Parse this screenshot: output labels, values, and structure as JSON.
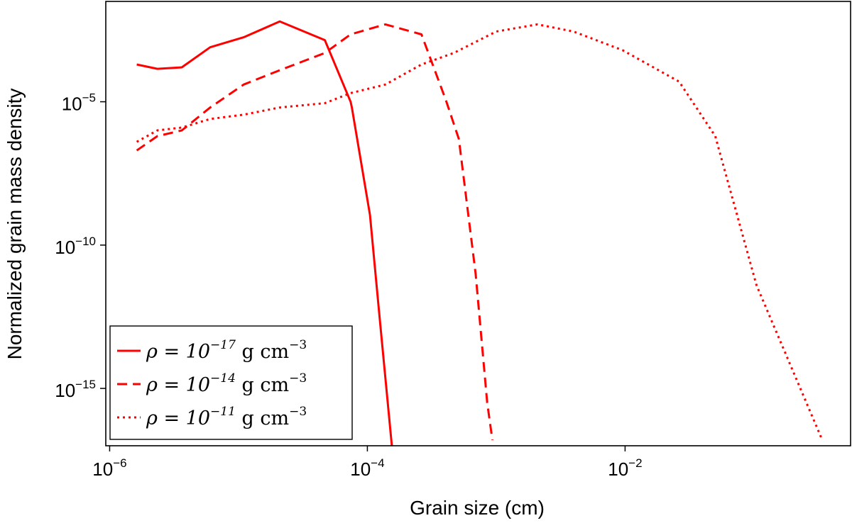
{
  "chart_data": {
    "type": "line",
    "xscale": "log",
    "yscale": "log",
    "xlabel": "Grain size (cm)",
    "ylabel": "Normalized grain mass density",
    "xlim_log10": [
      -6.03,
      -0.25
    ],
    "ylim_log10": [
      -17.0,
      -1.5
    ],
    "x_ticks": [
      {
        "base": "10",
        "exp": "−6",
        "log10": -6
      },
      {
        "base": "10",
        "exp": "−4",
        "log10": -4
      },
      {
        "base": "10",
        "exp": "−2",
        "log10": -2
      }
    ],
    "y_ticks": [
      {
        "base": "10",
        "exp": "−5",
        "log10": -5
      },
      {
        "base": "10",
        "exp": "−10",
        "log10": -10
      },
      {
        "base": "10",
        "exp": "−15",
        "log10": -15
      }
    ],
    "legend_position": "lower-left",
    "series": [
      {
        "name": "rho=1e-17",
        "label_prefix": "ρ = 10",
        "label_exp": "−17",
        "label_unit": " g cm",
        "label_unit_exp": "−3",
        "color": "#ff0000",
        "dash": "solid",
        "points": [
          [
            -5.79,
            -3.7
          ],
          [
            -5.63,
            -3.85
          ],
          [
            -5.44,
            -3.8
          ],
          [
            -5.22,
            -3.1
          ],
          [
            -4.96,
            -2.75
          ],
          [
            -4.68,
            -2.2
          ],
          [
            -4.33,
            -2.85
          ],
          [
            -4.13,
            -5.0
          ],
          [
            -4.12,
            -5.2
          ],
          [
            -3.98,
            -8.95
          ],
          [
            -3.91,
            -12.3
          ],
          [
            -3.81,
            -17.0
          ]
        ]
      },
      {
        "name": "rho=1e-14",
        "label_prefix": "ρ = 10",
        "label_exp": "−14",
        "label_unit": " g cm",
        "label_unit_exp": "−3",
        "color": "#ff0000",
        "dash": "dashed",
        "points": [
          [
            -5.79,
            -6.7
          ],
          [
            -5.63,
            -6.2
          ],
          [
            -5.44,
            -6.0
          ],
          [
            -5.22,
            -5.2
          ],
          [
            -4.96,
            -4.4
          ],
          [
            -4.68,
            -3.9
          ],
          [
            -4.33,
            -3.3
          ],
          [
            -4.13,
            -2.65
          ],
          [
            -3.86,
            -2.3
          ],
          [
            -3.58,
            -2.65
          ],
          [
            -3.39,
            -4.95
          ],
          [
            -3.29,
            -6.3
          ],
          [
            -3.16,
            -11.0
          ],
          [
            -3.07,
            -15.5
          ],
          [
            -3.03,
            -16.8
          ]
        ]
      },
      {
        "name": "rho=1e-11",
        "label_prefix": "ρ = 10",
        "label_exp": "−11",
        "label_unit": " g cm",
        "label_unit_exp": "−3",
        "color": "#ff0000",
        "dash": "dotted",
        "points": [
          [
            -5.79,
            -6.4
          ],
          [
            -5.63,
            -6.0
          ],
          [
            -5.44,
            -5.9
          ],
          [
            -5.22,
            -5.6
          ],
          [
            -4.96,
            -5.45
          ],
          [
            -4.68,
            -5.2
          ],
          [
            -4.33,
            -5.05
          ],
          [
            -4.13,
            -4.7
          ],
          [
            -3.86,
            -4.4
          ],
          [
            -3.58,
            -3.7
          ],
          [
            -3.33,
            -3.3
          ],
          [
            -3.0,
            -2.55
          ],
          [
            -2.68,
            -2.3
          ],
          [
            -2.4,
            -2.55
          ],
          [
            -2.02,
            -3.2
          ],
          [
            -1.58,
            -4.3
          ],
          [
            -1.3,
            -6.2
          ],
          [
            -0.98,
            -11.4
          ],
          [
            -0.47,
            -16.8
          ]
        ]
      }
    ]
  }
}
